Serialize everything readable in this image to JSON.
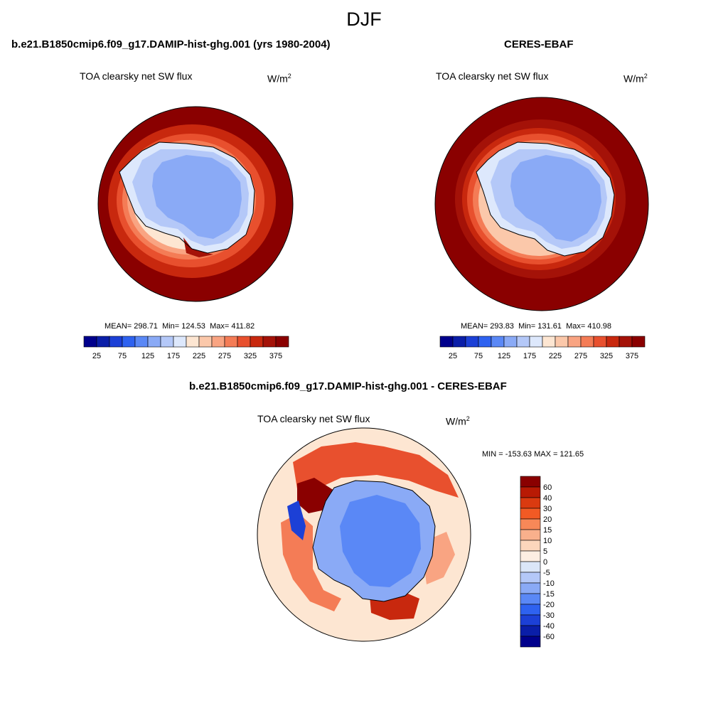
{
  "figure_title": "DJF",
  "panels": [
    {
      "id": "model",
      "title": "b.e21.B1850cmip6.f09_g17.DAMIP-hist-ghg.001 (yrs 1980-2004)",
      "variable": "TOA clearsky net SW flux",
      "units_base": "W/m",
      "units_exp": "2",
      "stats": {
        "mean": "298.71",
        "min": "124.53",
        "max": "411.82"
      },
      "mean_label": "MEAN=",
      "min_label": "Min=",
      "max_label": "Max="
    },
    {
      "id": "obs",
      "title": "CERES-EBAF",
      "variable": "TOA clearsky net SW flux",
      "units_base": "W/m",
      "units_exp": "2",
      "stats": {
        "mean": "293.83",
        "min": "131.61",
        "max": "410.98"
      },
      "mean_label": "MEAN=",
      "min_label": "Min=",
      "max_label": "Max="
    }
  ],
  "diff_panel": {
    "title": "b.e21.B1850cmip6.f09_g17.DAMIP-hist-ghg.001 - CERES-EBAF",
    "variable": "TOA clearsky net SW flux",
    "units_base": "W/m",
    "units_exp": "2",
    "minmax_text": "MIN = -153.63 MAX = 121.65"
  },
  "chart_data": [
    {
      "type": "heatmap",
      "projection": "south-polar-stereographic",
      "title": "b.e21.B1850cmip6.f09_g17.DAMIP-hist-ghg.001 (yrs 1980-2004)",
      "variable": "TOA clearsky net SW flux",
      "units": "W/m2",
      "mean": 298.71,
      "min": 124.53,
      "max": 411.82,
      "colorbar_ticks": [
        "25",
        "75",
        "125",
        "175",
        "225",
        "275",
        "325",
        "375"
      ],
      "colorbar_levels": [
        25,
        50,
        75,
        100,
        125,
        150,
        175,
        200,
        225,
        250,
        275,
        300,
        325,
        350,
        375
      ]
    },
    {
      "type": "heatmap",
      "projection": "south-polar-stereographic",
      "title": "CERES-EBAF",
      "variable": "TOA clearsky net SW flux",
      "units": "W/m2",
      "mean": 293.83,
      "min": 131.61,
      "max": 410.98,
      "colorbar_ticks": [
        "25",
        "75",
        "125",
        "175",
        "225",
        "275",
        "325",
        "375"
      ],
      "colorbar_levels": [
        25,
        50,
        75,
        100,
        125,
        150,
        175,
        200,
        225,
        250,
        275,
        300,
        325,
        350,
        375
      ]
    },
    {
      "type": "heatmap",
      "projection": "south-polar-stereographic",
      "title": "b.e21.B1850cmip6.f09_g17.DAMIP-hist-ghg.001 - CERES-EBAF",
      "variable": "TOA clearsky net SW flux",
      "units": "W/m2",
      "min": -153.63,
      "max": 121.65,
      "colorbar_ticks": [
        "60",
        "40",
        "30",
        "20",
        "15",
        "10",
        "5",
        "0",
        "-5",
        "-10",
        "-15",
        "-20",
        "-30",
        "-40",
        "-60"
      ]
    }
  ],
  "colors": {
    "abs_scale": [
      "#00008c",
      "#0a1ea8",
      "#1c40d6",
      "#2e62f0",
      "#5a88f6",
      "#8aaaf6",
      "#b4c8f8",
      "#dde8fc",
      "#fde6d2",
      "#fbc8aa",
      "#f9a482",
      "#f47c56",
      "#e8502e",
      "#c8280e",
      "#a41208",
      "#8a0000"
    ],
    "diff_scale": [
      "#8a0000",
      "#b81a04",
      "#da3a10",
      "#f25a24",
      "#f78858",
      "#f9b08c",
      "#fcd6bc",
      "#fdeee2",
      "#dbe6f8",
      "#b4c8f8",
      "#8aaaf6",
      "#5a88f6",
      "#2e62f0",
      "#1c40d6",
      "#0a1ea8",
      "#00008c"
    ]
  }
}
